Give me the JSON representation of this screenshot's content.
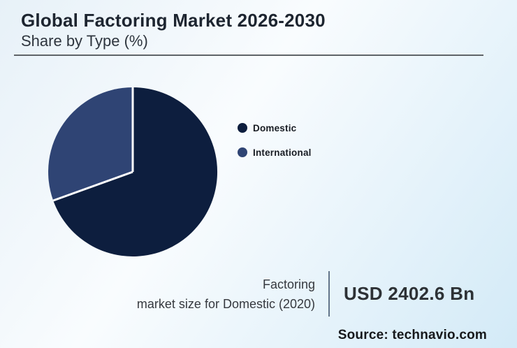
{
  "header": {
    "title": "Global Factoring Market 2026-2030",
    "subtitle": "Share by Type (%)"
  },
  "chart_data": {
    "type": "pie",
    "title": "Global Factoring Market 2026-2030",
    "subtitle": "Share by Type (%)",
    "categories": [
      "Domestic",
      "International"
    ],
    "values": [
      69.5,
      30.5
    ],
    "colors": [
      "#0d1e3e",
      "#2f4474"
    ],
    "start_angle_deg": 0,
    "direction": "clockwise",
    "slice_border_color": "#ffffff",
    "legend_position": "right",
    "legend": [
      "Domestic",
      "International"
    ]
  },
  "legend": {
    "items": [
      {
        "label": "Domestic",
        "color": "#0d1e3e"
      },
      {
        "label": "International",
        "color": "#2f4474"
      }
    ]
  },
  "stat": {
    "label_line1": "Factoring",
    "label_line2": "market size for Domestic (2020)",
    "value": "USD 2402.6 Bn"
  },
  "source": {
    "text": "Source: technavio.com"
  }
}
